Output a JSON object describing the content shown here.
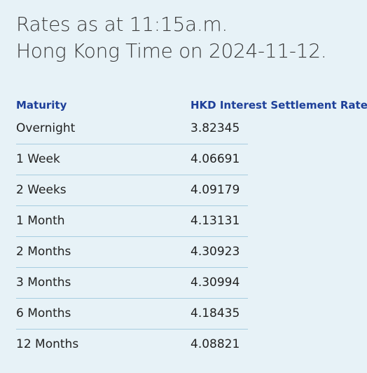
{
  "header": {
    "title_lines": [
      "Rates as at 11:15a.m.",
      "Hong Kong Time on 2024-11-12."
    ]
  },
  "table": {
    "columns": [
      "Maturity",
      "HKD Interest Settlement Rates"
    ],
    "rows": [
      [
        "Overnight",
        "3.82345"
      ],
      [
        "1 Week",
        "4.06691"
      ],
      [
        "2 Weeks",
        "4.09179"
      ],
      [
        "1 Month",
        "4.13131"
      ],
      [
        "2 Months",
        "4.30923"
      ],
      [
        "3 Months",
        "4.30994"
      ],
      [
        "6 Months",
        "4.18435"
      ],
      [
        "12 Months",
        "4.08821"
      ]
    ]
  }
}
